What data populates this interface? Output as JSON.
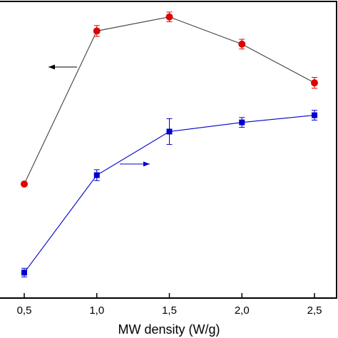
{
  "chart_data": {
    "type": "line",
    "xlabel": "MW density (W/g)",
    "x": [
      0.5,
      1.0,
      1.5,
      2.0,
      2.5
    ],
    "x_tick_labels": [
      "0,5",
      "1,0",
      "1,5",
      "2,0",
      "2,5"
    ],
    "xlim": [
      0.5,
      2.5
    ],
    "ylim": [
      0,
      1
    ],
    "y_tick_labels": [],
    "grid": false,
    "legend": "none",
    "series": [
      {
        "marker": "circle",
        "color": "#e00000",
        "line_color": "#404040",
        "axis": "left",
        "values": [
          0.363,
          0.897,
          0.946,
          0.851,
          0.716
        ],
        "errors": [
          0.0,
          0.019,
          0.017,
          0.017,
          0.019
        ]
      },
      {
        "marker": "square",
        "color": "#0000cc",
        "line_color": "#0000cc",
        "axis": "right",
        "values": [
          0.054,
          0.394,
          0.546,
          0.578,
          0.603
        ],
        "errors": [
          0.015,
          0.019,
          0.045,
          0.017,
          0.017
        ]
      }
    ],
    "annotations": [
      {
        "type": "arrow",
        "direction": "left",
        "points_to": "left-axis",
        "color": "#000000"
      },
      {
        "type": "arrow",
        "direction": "right",
        "points_to": "right-axis",
        "color": "#0000cc"
      }
    ]
  }
}
